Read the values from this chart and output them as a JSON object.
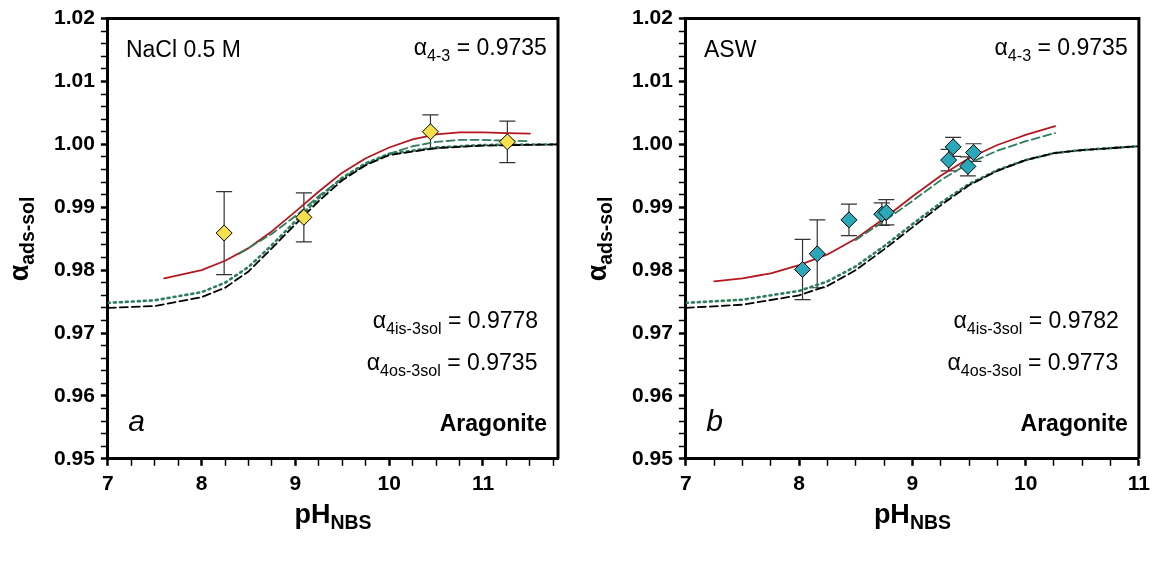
{
  "chart_data": [
    {
      "type": "line",
      "xlabel": "pH$_{NBS}$",
      "ylabel": "α$_{ads-sol}$",
      "annotations": [
        "NaCl 0.5 M",
        "α$_{4-3}$ = 0.9735",
        "α$_{4is-3sol}$ = 0.9778",
        "α$_{4os-3sol}$ = 0.9735",
        "a",
        "Aragonite"
      ],
      "xlim": [
        7,
        11.8
      ],
      "xticks": [
        7,
        {
          "value": 7.25,
          "label": null
        },
        {
          "value": 7.5,
          "label": null
        },
        {
          "value": 7.75,
          "label": null
        },
        8,
        {
          "value": 8.25,
          "label": null
        },
        {
          "value": 8.5,
          "label": null
        },
        {
          "value": 8.75,
          "label": null
        },
        9,
        {
          "value": 9.25,
          "label": null
        },
        {
          "value": 9.5,
          "label": null
        },
        {
          "value": 9.75,
          "label": null
        },
        10,
        {
          "value": 10.25,
          "label": null
        },
        {
          "value": 10.5,
          "label": null
        },
        {
          "value": 10.75,
          "label": null
        },
        11,
        {
          "value": 11.25,
          "label": null
        },
        {
          "value": 11.5,
          "label": null
        },
        {
          "value": 11.75,
          "label": null
        }
      ],
      "ylim": [
        0.95,
        1.02
      ],
      "yticks": [
        0.95,
        {
          "value": 0.952,
          "label": null
        },
        {
          "value": 0.954,
          "label": null
        },
        {
          "value": 0.956,
          "label": null
        },
        {
          "value": 0.958,
          "label": null
        },
        0.96,
        {
          "value": 0.962,
          "label": null
        },
        {
          "value": 0.964,
          "label": null
        },
        {
          "value": 0.966,
          "label": null
        },
        {
          "value": 0.968,
          "label": null
        },
        0.97,
        {
          "value": 0.972,
          "label": null
        },
        {
          "value": 0.974,
          "label": null
        },
        {
          "value": 0.976,
          "label": null
        },
        {
          "value": 0.978,
          "label": null
        },
        0.98,
        {
          "value": 0.982,
          "label": null
        },
        {
          "value": 0.984,
          "label": null
        },
        {
          "value": 0.986,
          "label": null
        },
        {
          "value": 0.988,
          "label": null
        },
        0.99,
        {
          "value": 0.992,
          "label": null
        },
        {
          "value": 0.994,
          "label": null
        },
        {
          "value": 0.996,
          "label": null
        },
        {
          "value": 0.998,
          "label": null
        },
        {
          "value": 1,
          "label": "1.00"
        },
        {
          "value": 1.002,
          "label": null
        },
        {
          "value": 1.004,
          "label": null
        },
        {
          "value": 1.006,
          "label": null
        },
        {
          "value": 1.008,
          "label": null
        },
        1.01,
        {
          "value": 1.012,
          "label": null
        },
        {
          "value": 1.014,
          "label": null
        },
        {
          "value": 1.016,
          "label": null
        },
        {
          "value": 1.018,
          "label": null
        },
        1.02
      ],
      "grid": false,
      "legend": false,
      "series": [
        {
          "type": "line",
          "color": "#000000",
          "line_style": "dashed",
          "x": [
            7,
            7.5,
            8,
            8.25,
            8.5,
            8.75,
            9,
            9.25,
            9.5,
            9.75,
            10,
            10.5,
            11,
            11.8
          ],
          "values": [
            0.974,
            0.9743,
            0.9757,
            0.9772,
            0.9798,
            0.9835,
            0.9873,
            0.991,
            0.9943,
            0.9967,
            0.9983,
            0.9994,
            0.9998,
            1
          ]
        },
        {
          "type": "line",
          "color": "#2e7d5b",
          "line_style": "dotted",
          "x": [
            7,
            7.5,
            8,
            8.25,
            8.5,
            8.75,
            9,
            9.25,
            9.5,
            9.75,
            10,
            10.5,
            11,
            11.8
          ],
          "values": [
            0.9748,
            0.9752,
            0.9765,
            0.978,
            0.9805,
            0.984,
            0.9878,
            0.9915,
            0.9947,
            0.997,
            0.9985,
            0.9995,
            0.9999,
            1
          ]
        },
        {
          "type": "line",
          "color": "#2e7d5b",
          "line_style": "dashed",
          "x": [
            8.4,
            8.75,
            9,
            9.25,
            9.5,
            9.75,
            10,
            10.25,
            10.5,
            10.75,
            11,
            11.5
          ],
          "values": [
            0.9826,
            0.9858,
            0.9886,
            0.9918,
            0.9946,
            0.9968,
            0.9985,
            0.9997,
            1.0004,
            1.0007,
            1.0007,
            1.0005
          ]
        },
        {
          "type": "line",
          "color": "#b5171e",
          "line_style": "solid",
          "x": [
            7.6,
            8,
            8.25,
            8.5,
            8.75,
            9,
            9.25,
            9.5,
            9.75,
            10,
            10.25,
            10.5,
            10.75,
            11,
            11.25,
            11.5
          ],
          "values": [
            0.9787,
            0.98,
            0.9815,
            0.9835,
            0.9862,
            0.9893,
            0.9925,
            0.9955,
            0.9978,
            0.9995,
            1.0008,
            1.0016,
            1.0019,
            1.0019,
            1.0018,
            1.0017
          ]
        },
        {
          "type": "scatter",
          "color": "#f7e04b",
          "marker": "diamond",
          "x": [
            8.24,
            9.09,
            10.44,
            11.26
          ],
          "values": [
            0.9859,
            0.9884,
            1.002,
            1.0004
          ],
          "errors": [
            0.0066,
            0.0039,
            0.0027,
            0.0033
          ]
        }
      ]
    },
    {
      "type": "line",
      "xlabel": "pH$_{NBS}$",
      "ylabel": "α$_{ads-sol}$",
      "annotations": [
        "ASW",
        "α$_{4-3}$ = 0.9735",
        "α$_{4is-3sol}$ = 0.9782",
        "α$_{4os-3sol}$ = 0.9773",
        "b",
        "Aragonite"
      ],
      "xlim": [
        7,
        11
      ],
      "xticks": [
        7,
        {
          "value": 7.25,
          "label": null
        },
        {
          "value": 7.5,
          "label": null
        },
        {
          "value": 7.75,
          "label": null
        },
        8,
        {
          "value": 8.25,
          "label": null
        },
        {
          "value": 8.5,
          "label": null
        },
        {
          "value": 8.75,
          "label": null
        },
        9,
        {
          "value": 9.25,
          "label": null
        },
        {
          "value": 9.5,
          "label": null
        },
        {
          "value": 9.75,
          "label": null
        },
        10,
        {
          "value": 10.25,
          "label": null
        },
        {
          "value": 10.5,
          "label": null
        },
        {
          "value": 10.75,
          "label": null
        },
        11
      ],
      "ylim": [
        0.95,
        1.02
      ],
      "yticks": [
        0.95,
        {
          "value": 0.952,
          "label": null
        },
        {
          "value": 0.954,
          "label": null
        },
        {
          "value": 0.956,
          "label": null
        },
        {
          "value": 0.958,
          "label": null
        },
        0.96,
        {
          "value": 0.962,
          "label": null
        },
        {
          "value": 0.964,
          "label": null
        },
        {
          "value": 0.966,
          "label": null
        },
        {
          "value": 0.968,
          "label": null
        },
        0.97,
        {
          "value": 0.972,
          "label": null
        },
        {
          "value": 0.974,
          "label": null
        },
        {
          "value": 0.976,
          "label": null
        },
        {
          "value": 0.978,
          "label": null
        },
        0.98,
        {
          "value": 0.982,
          "label": null
        },
        {
          "value": 0.984,
          "label": null
        },
        {
          "value": 0.986,
          "label": null
        },
        {
          "value": 0.988,
          "label": null
        },
        0.99,
        {
          "value": 0.992,
          "label": null
        },
        {
          "value": 0.994,
          "label": null
        },
        {
          "value": 0.996,
          "label": null
        },
        {
          "value": 0.998,
          "label": null
        },
        {
          "value": 1,
          "label": "1.00"
        },
        {
          "value": 1.002,
          "label": null
        },
        {
          "value": 1.004,
          "label": null
        },
        {
          "value": 1.006,
          "label": null
        },
        {
          "value": 1.008,
          "label": null
        },
        1.01,
        {
          "value": 1.012,
          "label": null
        },
        {
          "value": 1.014,
          "label": null
        },
        {
          "value": 1.016,
          "label": null
        },
        {
          "value": 1.018,
          "label": null
        },
        1.02
      ],
      "grid": false,
      "legend": false,
      "series": [
        {
          "type": "line",
          "color": "#000000",
          "line_style": "dashed",
          "x": [
            7,
            7.5,
            8,
            8.25,
            8.5,
            8.75,
            9,
            9.25,
            9.5,
            9.75,
            10,
            10.25,
            10.5,
            11
          ],
          "values": [
            0.974,
            0.9745,
            0.976,
            0.9775,
            0.98,
            0.9833,
            0.9868,
            0.9903,
            0.9935,
            0.9958,
            0.9975,
            0.9986,
            0.9991,
            0.9997
          ]
        },
        {
          "type": "line",
          "color": "#2e7d5b",
          "line_style": "dotted",
          "x": [
            7,
            7.5,
            8,
            8.25,
            8.5,
            8.75,
            9,
            9.25,
            9.5,
            9.75,
            10,
            10.25,
            10.5,
            11
          ],
          "values": [
            0.9748,
            0.9753,
            0.9767,
            0.9782,
            0.9806,
            0.9838,
            0.9873,
            0.9907,
            0.9937,
            0.9959,
            0.9975,
            0.9986,
            0.9991,
            0.9997
          ]
        },
        {
          "type": "line",
          "color": "#2e7d5b",
          "line_style": "dashed",
          "x": [
            8.5,
            8.75,
            9,
            9.25,
            9.5,
            9.75,
            10,
            10.26
          ],
          "values": [
            0.9848,
            0.9878,
            0.991,
            0.9943,
            0.997,
            0.999,
            1.0005,
            1.0018
          ]
        },
        {
          "type": "line",
          "color": "#b5171e",
          "line_style": "solid",
          "x": [
            7.25,
            7.5,
            7.75,
            8,
            8.25,
            8.5,
            8.75,
            9,
            9.25,
            9.5,
            9.75,
            10,
            10.26
          ],
          "values": [
            0.9782,
            0.9787,
            0.9795,
            0.9808,
            0.9825,
            0.985,
            0.9882,
            0.9917,
            0.995,
            0.9978,
            0.9999,
            1.0015,
            1.0029
          ]
        },
        {
          "type": "scatter",
          "color": "#2aa7b8",
          "marker": "diamond",
          "x": [
            8.03,
            8.16,
            8.44,
            8.73,
            8.77,
            9.32,
            9.36,
            9.49,
            9.54
          ],
          "values": [
            0.9801,
            0.9826,
            0.988,
            0.9889,
            0.9892,
            0.9975,
            0.9996,
            0.9965,
            0.9987
          ],
          "errors": [
            0.0048,
            0.0054,
            0.0025,
            0.0018,
            0.002,
            0.0017,
            0.0015,
            0.0015,
            0.0014
          ]
        }
      ]
    }
  ]
}
